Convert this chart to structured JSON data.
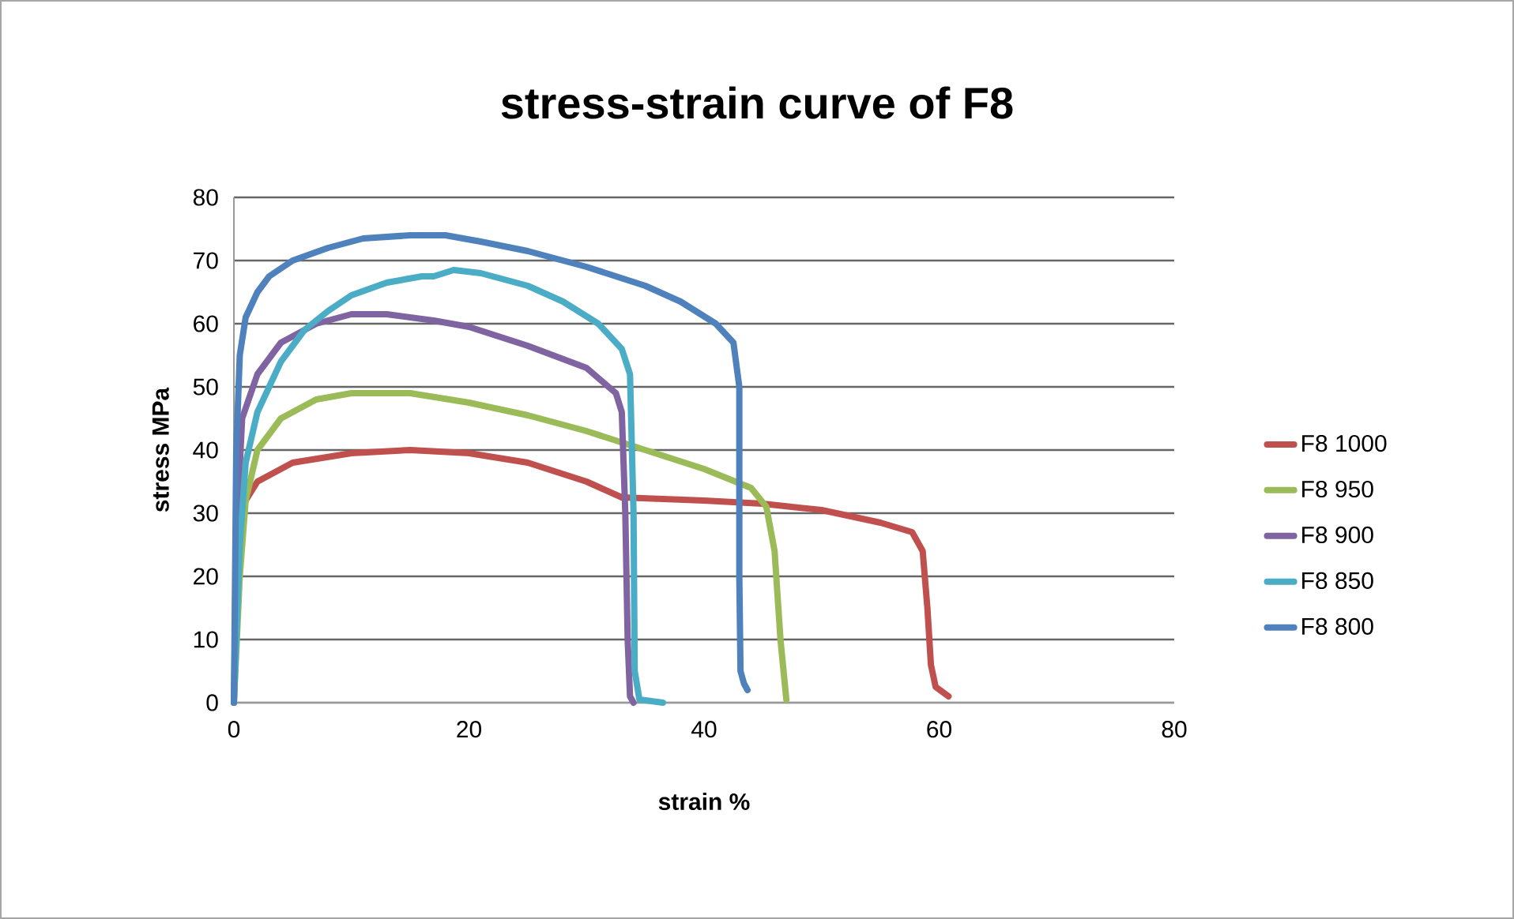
{
  "chart_data": {
    "type": "line",
    "title": "stress-strain curve of F8",
    "xlabel": "strain %",
    "ylabel": "stress MPa",
    "xlim": [
      0,
      80
    ],
    "ylim": [
      0,
      80
    ],
    "xticks": [
      0,
      20,
      40,
      60,
      80
    ],
    "yticks": [
      0,
      10,
      20,
      30,
      40,
      50,
      60,
      70,
      80
    ],
    "grid": "y",
    "legend": "right",
    "marker": "none",
    "line_style": "solid",
    "series": [
      {
        "name": "F8 1000",
        "color": "#c0504d",
        "x": [
          0.7,
          1,
          2,
          5,
          10,
          15,
          20,
          25,
          30,
          33,
          40,
          45,
          50,
          55,
          57.7,
          58.6,
          59,
          59.3,
          59.7,
          60.8
        ],
        "values": [
          30,
          32,
          35,
          38,
          39.5,
          40,
          39.5,
          38,
          35,
          32.5,
          32,
          31.5,
          30.5,
          28.5,
          27,
          24,
          15,
          6,
          2.5,
          1
        ]
      },
      {
        "name": "F8 950",
        "color": "#9bbb59",
        "x": [
          0,
          0.5,
          1,
          2,
          4,
          7,
          10,
          15,
          20,
          25,
          30,
          35,
          40,
          44,
          45.3,
          46,
          46.5,
          47
        ],
        "values": [
          0,
          20,
          32,
          40,
          45,
          48,
          49,
          49,
          47.5,
          45.5,
          43,
          40,
          37,
          34,
          31,
          24,
          10,
          0.5
        ]
      },
      {
        "name": "F8 900",
        "color": "#8064a2",
        "x": [
          0,
          0.3,
          0.7,
          2,
          4,
          7,
          10,
          13,
          17,
          20,
          25,
          30,
          32.5,
          33,
          33.3,
          33.5,
          33.7,
          34
        ],
        "values": [
          0,
          30,
          45,
          52,
          57,
          60,
          61.5,
          61.5,
          60.5,
          59.5,
          56.5,
          53,
          49,
          46,
          30,
          10,
          1,
          0
        ]
      },
      {
        "name": "F8 850",
        "color": "#4bacc6",
        "x": [
          0,
          0.5,
          1,
          2,
          4,
          6,
          8,
          10,
          13,
          16,
          17,
          18.7,
          21,
          25,
          28,
          31,
          33,
          33.7,
          34,
          34.1,
          34.5,
          36.5
        ],
        "values": [
          0,
          25,
          38,
          46,
          54,
          59,
          62,
          64.5,
          66.5,
          67.5,
          67.5,
          68.5,
          68,
          66,
          63.5,
          60,
          56,
          52,
          30,
          5,
          0.5,
          0
        ]
      },
      {
        "name": "F8 800",
        "color": "#4f81bd",
        "x": [
          0,
          0.2,
          0.5,
          1,
          2,
          3,
          5,
          8,
          11,
          15,
          18,
          21,
          25,
          30,
          35,
          38,
          41,
          42.5,
          43,
          43,
          43.1,
          43.4,
          43.7
        ],
        "values": [
          0,
          40,
          55,
          61,
          65,
          67.5,
          70,
          72,
          73.5,
          74,
          74,
          73,
          71.5,
          69,
          66,
          63.5,
          60,
          57,
          50,
          20,
          5,
          3,
          2
        ]
      }
    ]
  }
}
